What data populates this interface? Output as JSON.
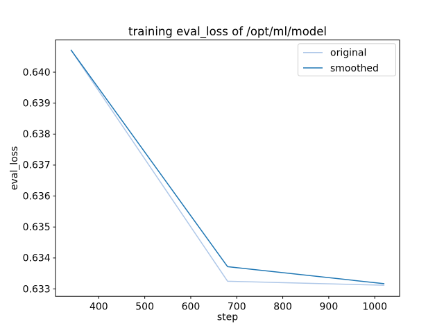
{
  "figure": {
    "background": "#ffffff",
    "text_color": "#000000",
    "spine_color": "#000000",
    "legend_border_color": "#cccccc",
    "legend_background": "#ffffff"
  },
  "chart_data": {
    "type": "line",
    "title": "training eval_loss of /opt/ml/model",
    "xlabel": "step",
    "ylabel": "eval_loss",
    "x": [
      340,
      680,
      1020
    ],
    "series": [
      {
        "name": "original",
        "color": "#aec7e8",
        "values": [
          0.64071,
          0.63325,
          0.63312
        ]
      },
      {
        "name": "smoothed",
        "color": "#1f77b4",
        "values": [
          0.64071,
          0.63372,
          0.63317
        ]
      }
    ],
    "xlim": [
      306,
      1054
    ],
    "ylim": [
      0.63276,
      0.64104
    ],
    "xticks": [
      400,
      500,
      600,
      700,
      800,
      900,
      1000
    ],
    "yticks": [
      0.633,
      0.634,
      0.635,
      0.636,
      0.637,
      0.638,
      0.639,
      0.64
    ],
    "ytick_decimals": 3,
    "grid": false,
    "legend_position": "upper right"
  }
}
